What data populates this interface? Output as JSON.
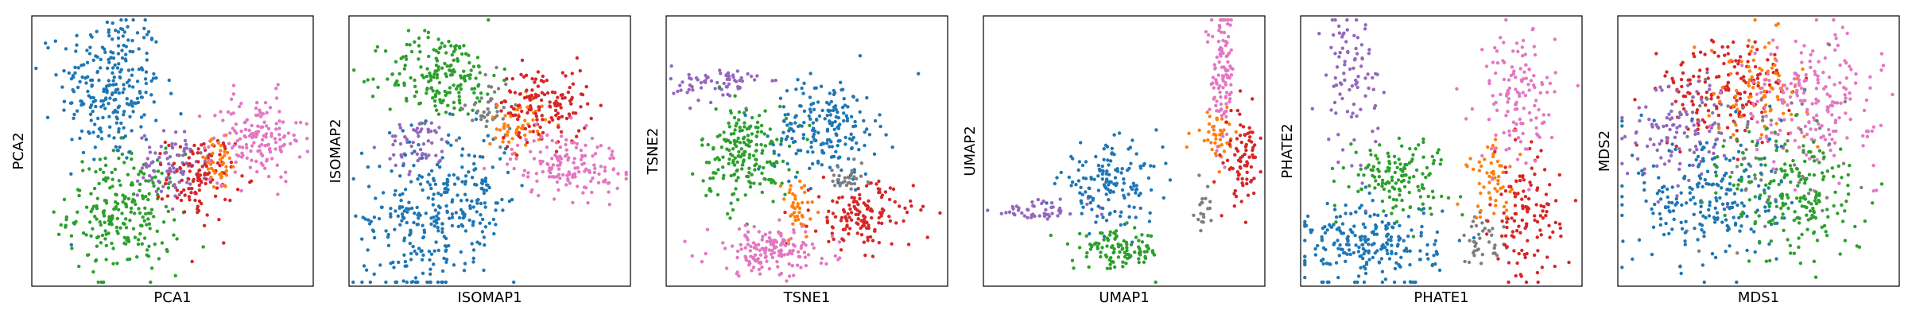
{
  "chart_data": [
    {
      "type": "scatter",
      "xlabel": "PCA1",
      "ylabel": "PCA2",
      "xlim": [
        0,
        10
      ],
      "ylim": [
        0,
        10
      ],
      "ticks": "none",
      "grid": false,
      "legend": "none",
      "clusters": [
        {
          "color": "#1f77b4",
          "cx": 2.8,
          "cy": 7.4,
          "sx": 0.9,
          "sy": 1.4,
          "n": 260
        },
        {
          "color": "#2ca02c",
          "cx": 3.3,
          "cy": 2.7,
          "sx": 1.0,
          "sy": 1.1,
          "n": 240
        },
        {
          "color": "#9467bd",
          "cx": 5.0,
          "cy": 4.5,
          "sx": 0.6,
          "sy": 0.6,
          "n": 90
        },
        {
          "color": "#d62728",
          "cx": 6.0,
          "cy": 4.0,
          "sx": 0.6,
          "sy": 0.8,
          "n": 110
        },
        {
          "color": "#ff7f0e",
          "cx": 6.6,
          "cy": 4.5,
          "sx": 0.4,
          "sy": 0.5,
          "n": 40
        },
        {
          "color": "#e377c2",
          "cx": 8.0,
          "cy": 5.5,
          "sx": 0.8,
          "sy": 0.8,
          "n": 150
        }
      ]
    },
    {
      "type": "scatter",
      "xlabel": "ISOMAP1",
      "ylabel": "ISOMAP2",
      "xlim": [
        0,
        10
      ],
      "ylim": [
        0,
        10
      ],
      "ticks": "none",
      "grid": false,
      "legend": "none",
      "clusters": [
        {
          "color": "#2ca02c",
          "cx": 3.3,
          "cy": 7.8,
          "sx": 1.0,
          "sy": 0.8,
          "n": 190
        },
        {
          "color": "#9467bd",
          "cx": 2.5,
          "cy": 5.2,
          "sx": 0.6,
          "sy": 0.5,
          "n": 60
        },
        {
          "color": "#1f77b4",
          "cx": 2.5,
          "cy": 2.5,
          "sx": 1.0,
          "sy": 1.5,
          "n": 220
        },
        {
          "color": "#1f77b4",
          "cx": 4.4,
          "cy": 3.4,
          "sx": 0.7,
          "sy": 1.2,
          "n": 110
        },
        {
          "color": "#7f7f7f",
          "cx": 5.0,
          "cy": 6.5,
          "sx": 0.4,
          "sy": 0.6,
          "n": 40
        },
        {
          "color": "#ff7f0e",
          "cx": 6.0,
          "cy": 6.0,
          "sx": 0.5,
          "sy": 0.5,
          "n": 50
        },
        {
          "color": "#d62728",
          "cx": 6.9,
          "cy": 6.7,
          "sx": 0.8,
          "sy": 0.7,
          "n": 140
        },
        {
          "color": "#e377c2",
          "cx": 7.8,
          "cy": 4.5,
          "sx": 1.0,
          "sy": 0.6,
          "n": 150
        }
      ]
    },
    {
      "type": "scatter",
      "xlabel": "TSNE1",
      "ylabel": "TSNE2",
      "xlim": [
        0,
        10
      ],
      "ylim": [
        0,
        10
      ],
      "ticks": "none",
      "grid": false,
      "legend": "none",
      "clusters": [
        {
          "color": "#9467bd",
          "cx": 1.8,
          "cy": 7.5,
          "sx": 0.8,
          "sy": 0.35,
          "n": 70
        },
        {
          "color": "#2ca02c",
          "cx": 2.8,
          "cy": 4.9,
          "sx": 0.8,
          "sy": 0.9,
          "n": 200
        },
        {
          "color": "#1f77b4",
          "cx": 5.7,
          "cy": 5.9,
          "sx": 0.9,
          "sy": 0.9,
          "n": 200
        },
        {
          "color": "#7f7f7f",
          "cx": 6.4,
          "cy": 4.0,
          "sx": 0.4,
          "sy": 0.25,
          "n": 30
        },
        {
          "color": "#ff7f0e",
          "cx": 4.6,
          "cy": 2.8,
          "sx": 0.35,
          "sy": 0.6,
          "n": 40
        },
        {
          "color": "#d62728",
          "cx": 7.0,
          "cy": 2.6,
          "sx": 0.9,
          "sy": 0.6,
          "n": 140
        },
        {
          "color": "#e377c2",
          "cx": 3.7,
          "cy": 1.3,
          "sx": 1.1,
          "sy": 0.45,
          "n": 160
        }
      ]
    },
    {
      "type": "scatter",
      "xlabel": "UMAP1",
      "ylabel": "UMAP2",
      "xlim": [
        0,
        10
      ],
      "ylim": [
        0,
        10
      ],
      "ticks": "none",
      "grid": false,
      "legend": "none",
      "clusters": [
        {
          "color": "#9467bd",
          "cx": 2.0,
          "cy": 2.8,
          "sx": 0.9,
          "sy": 0.2,
          "n": 50
        },
        {
          "color": "#1f77b4",
          "cx": 4.5,
          "cy": 3.8,
          "sx": 0.9,
          "sy": 0.7,
          "n": 150
        },
        {
          "color": "#2ca02c",
          "cx": 4.8,
          "cy": 1.3,
          "sx": 0.8,
          "sy": 0.35,
          "n": 110
        },
        {
          "color": "#e377c2",
          "cx": 8.5,
          "cy": 7.8,
          "sx": 0.2,
          "sy": 1.3,
          "n": 110
        },
        {
          "color": "#ff7f0e",
          "cx": 8.3,
          "cy": 5.6,
          "sx": 0.4,
          "sy": 0.4,
          "n": 40
        },
        {
          "color": "#d62728",
          "cx": 9.2,
          "cy": 4.7,
          "sx": 0.3,
          "sy": 0.9,
          "n": 80
        },
        {
          "color": "#7f7f7f",
          "cx": 7.8,
          "cy": 2.9,
          "sx": 0.15,
          "sy": 0.4,
          "n": 20
        }
      ]
    },
    {
      "type": "scatter",
      "xlabel": "PHATE1",
      "ylabel": "PHATE2",
      "xlim": [
        0,
        10
      ],
      "ylim": [
        0,
        10
      ],
      "ticks": "none",
      "grid": false,
      "legend": "none",
      "clusters": [
        {
          "color": "#9467bd",
          "cx": 1.8,
          "cy": 7.7,
          "sx": 0.5,
          "sy": 1.4,
          "n": 90
        },
        {
          "color": "#2ca02c",
          "cx": 3.4,
          "cy": 4.1,
          "sx": 0.9,
          "sy": 0.7,
          "n": 140
        },
        {
          "color": "#1f77b4",
          "cx": 2.5,
          "cy": 1.5,
          "sx": 1.2,
          "sy": 0.8,
          "n": 230
        },
        {
          "color": "#7f7f7f",
          "cx": 6.5,
          "cy": 1.7,
          "sx": 0.4,
          "sy": 0.5,
          "n": 40
        },
        {
          "color": "#ff7f0e",
          "cx": 6.9,
          "cy": 3.9,
          "sx": 0.5,
          "sy": 0.7,
          "n": 60
        },
        {
          "color": "#d62728",
          "cx": 8.0,
          "cy": 2.5,
          "sx": 0.6,
          "sy": 1.2,
          "n": 120
        },
        {
          "color": "#e377c2",
          "cx": 7.7,
          "cy": 7.0,
          "sx": 0.7,
          "sy": 1.2,
          "n": 130
        }
      ]
    },
    {
      "type": "scatter",
      "xlabel": "MDS1",
      "ylabel": "MDS2",
      "xlim": [
        0,
        10
      ],
      "ylim": [
        0,
        10
      ],
      "ticks": "none",
      "grid": false,
      "legend": "none",
      "clusters": [
        {
          "color": "#d62728",
          "cx": 3.8,
          "cy": 7.2,
          "sx": 1.2,
          "sy": 1.0,
          "n": 170
        },
        {
          "color": "#ff7f0e",
          "cx": 5.0,
          "cy": 7.4,
          "sx": 0.9,
          "sy": 0.9,
          "n": 80
        },
        {
          "color": "#9467bd",
          "cx": 2.3,
          "cy": 5.9,
          "sx": 1.0,
          "sy": 1.0,
          "n": 110
        },
        {
          "color": "#e377c2",
          "cx": 6.8,
          "cy": 6.8,
          "sx": 1.2,
          "sy": 1.2,
          "n": 200
        },
        {
          "color": "#7f7f7f",
          "cx": 5.5,
          "cy": 4.8,
          "sx": 1.5,
          "sy": 1.5,
          "n": 70
        },
        {
          "color": "#1f77b4",
          "cx": 3.2,
          "cy": 3.3,
          "sx": 1.3,
          "sy": 1.3,
          "n": 230
        },
        {
          "color": "#2ca02c",
          "cx": 6.4,
          "cy": 3.4,
          "sx": 1.2,
          "sy": 1.3,
          "n": 200
        }
      ]
    }
  ]
}
